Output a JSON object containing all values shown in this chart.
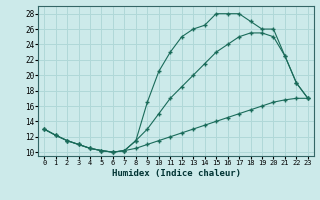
{
  "xlabel": "Humidex (Indice chaleur)",
  "xlim": [
    -0.5,
    23.5
  ],
  "ylim": [
    9.5,
    29
  ],
  "yticks": [
    10,
    12,
    14,
    16,
    18,
    20,
    22,
    24,
    26,
    28
  ],
  "xticks": [
    0,
    1,
    2,
    3,
    4,
    5,
    6,
    7,
    8,
    9,
    10,
    11,
    12,
    13,
    14,
    15,
    16,
    17,
    18,
    19,
    20,
    21,
    22,
    23
  ],
  "background_color": "#cceaea",
  "line_color": "#1a6b5a",
  "grid_color": "#b0d8d8",
  "line_min_x": [
    0,
    1,
    2,
    3,
    4,
    5,
    6,
    7,
    8,
    9,
    10,
    11,
    12,
    13,
    14,
    15,
    16,
    17,
    18,
    19,
    20,
    21,
    22,
    23
  ],
  "line_min_y": [
    13.0,
    12.2,
    11.5,
    11.0,
    10.5,
    10.2,
    10.0,
    10.2,
    10.5,
    11.0,
    11.5,
    12.0,
    12.5,
    13.0,
    13.5,
    14.0,
    14.5,
    15.0,
    15.5,
    16.0,
    16.5,
    16.8,
    17.0,
    17.0
  ],
  "line_max_x": [
    0,
    1,
    2,
    3,
    4,
    5,
    6,
    7,
    8,
    9,
    10,
    11,
    12,
    13,
    14,
    15,
    16,
    17,
    18,
    19,
    20,
    21,
    22,
    23
  ],
  "line_max_y": [
    13.0,
    12.2,
    11.5,
    11.0,
    10.5,
    10.2,
    10.0,
    10.2,
    11.5,
    16.5,
    20.5,
    23.0,
    25.0,
    26.0,
    26.5,
    28.0,
    28.0,
    28.0,
    27.0,
    26.0,
    26.0,
    22.5,
    19.0,
    17.0
  ],
  "line_mid_x": [
    0,
    1,
    2,
    3,
    4,
    5,
    6,
    7,
    8,
    9,
    10,
    11,
    12,
    13,
    14,
    15,
    16,
    17,
    18,
    19,
    20,
    21,
    22,
    23
  ],
  "line_mid_y": [
    13.0,
    12.2,
    11.5,
    11.0,
    10.5,
    10.2,
    10.0,
    10.2,
    11.5,
    13.0,
    15.0,
    17.0,
    18.5,
    20.0,
    21.5,
    23.0,
    24.0,
    25.0,
    25.5,
    25.5,
    25.0,
    22.5,
    19.0,
    17.0
  ]
}
